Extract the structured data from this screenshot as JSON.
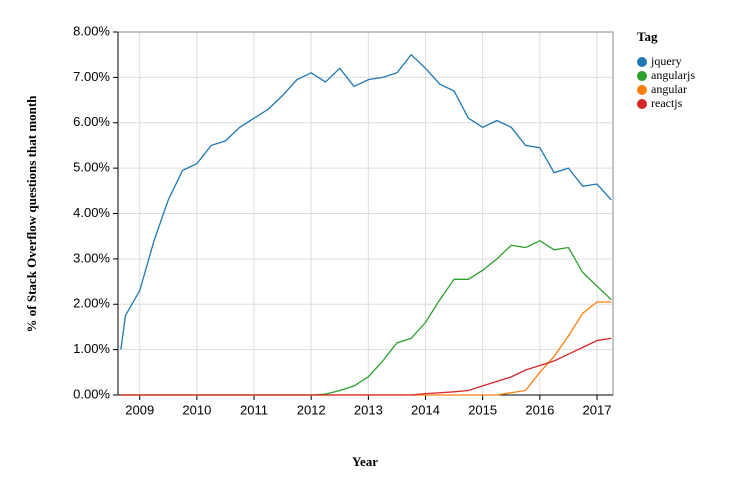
{
  "chart_data": {
    "type": "line",
    "xlabel": "Year",
    "ylabel": "% of Stack Overflow questions that month",
    "legend_title": "Tag",
    "x": [
      2008.67,
      2008.75,
      2009.0,
      2009.25,
      2009.5,
      2009.75,
      2010.0,
      2010.25,
      2010.5,
      2010.75,
      2011.0,
      2011.25,
      2011.5,
      2011.75,
      2012.0,
      2012.25,
      2012.5,
      2012.75,
      2013.0,
      2013.25,
      2013.5,
      2013.75,
      2014.0,
      2014.25,
      2014.5,
      2014.75,
      2015.0,
      2015.25,
      2015.5,
      2015.75,
      2016.0,
      2016.25,
      2016.5,
      2016.75,
      2017.0,
      2017.25
    ],
    "series": [
      {
        "name": "jquery",
        "color": "#1f77b4",
        "values": [
          1.0,
          1.75,
          2.3,
          3.4,
          4.3,
          4.95,
          5.1,
          5.5,
          5.6,
          5.9,
          6.1,
          6.3,
          6.6,
          6.95,
          7.1,
          6.9,
          7.2,
          6.8,
          6.95,
          7.0,
          7.1,
          7.5,
          7.2,
          6.85,
          6.7,
          6.1,
          5.9,
          6.05,
          5.9,
          5.5,
          5.45,
          4.9,
          5.0,
          4.6,
          4.65,
          4.3
        ]
      },
      {
        "name": "angularjs",
        "color": "#2ca02c",
        "values": [
          0,
          0,
          0,
          0,
          0,
          0,
          0,
          0,
          0,
          0,
          0,
          0,
          0,
          0,
          0,
          0.02,
          0.1,
          0.2,
          0.4,
          0.75,
          1.15,
          1.25,
          1.6,
          2.1,
          2.55,
          2.55,
          2.75,
          3.0,
          3.3,
          3.25,
          3.4,
          3.2,
          3.25,
          2.7,
          2.4,
          2.1
        ]
      },
      {
        "name": "angular",
        "color": "#ff7f0e",
        "values": [
          0,
          0,
          0,
          0,
          0,
          0,
          0,
          0,
          0,
          0,
          0,
          0,
          0,
          0,
          0,
          0,
          0,
          0,
          0,
          0,
          0,
          0,
          0,
          0,
          0,
          0,
          0,
          0,
          0.05,
          0.1,
          0.5,
          0.85,
          1.3,
          1.8,
          2.05,
          2.05
        ]
      },
      {
        "name": "reactjs",
        "color": "#d62728",
        "values": [
          0,
          0,
          0,
          0,
          0,
          0,
          0,
          0,
          0,
          0,
          0,
          0,
          0,
          0,
          0,
          0,
          0,
          0,
          0,
          0,
          0,
          0,
          0.03,
          0.05,
          0.07,
          0.1,
          0.2,
          0.3,
          0.4,
          0.55,
          0.65,
          0.75,
          0.9,
          1.05,
          1.2,
          1.25
        ]
      }
    ],
    "xlim": [
      2008.62,
      2017.28
    ],
    "xticks": [
      2009,
      2010,
      2011,
      2012,
      2013,
      2014,
      2015,
      2016,
      2017
    ],
    "ylim": [
      0,
      8
    ],
    "yticks": [
      {
        "value": 0,
        "label": "0.00%"
      },
      {
        "value": 1,
        "label": "1.00%"
      },
      {
        "value": 2,
        "label": "2.00%"
      },
      {
        "value": 3,
        "label": "3.00%"
      },
      {
        "value": 4,
        "label": "4.00%"
      },
      {
        "value": 5,
        "label": "5.00%"
      },
      {
        "value": 6,
        "label": "6.00%"
      },
      {
        "value": 7,
        "label": "7.00%"
      },
      {
        "value": 8,
        "label": "8.00%"
      }
    ],
    "grid": true
  }
}
